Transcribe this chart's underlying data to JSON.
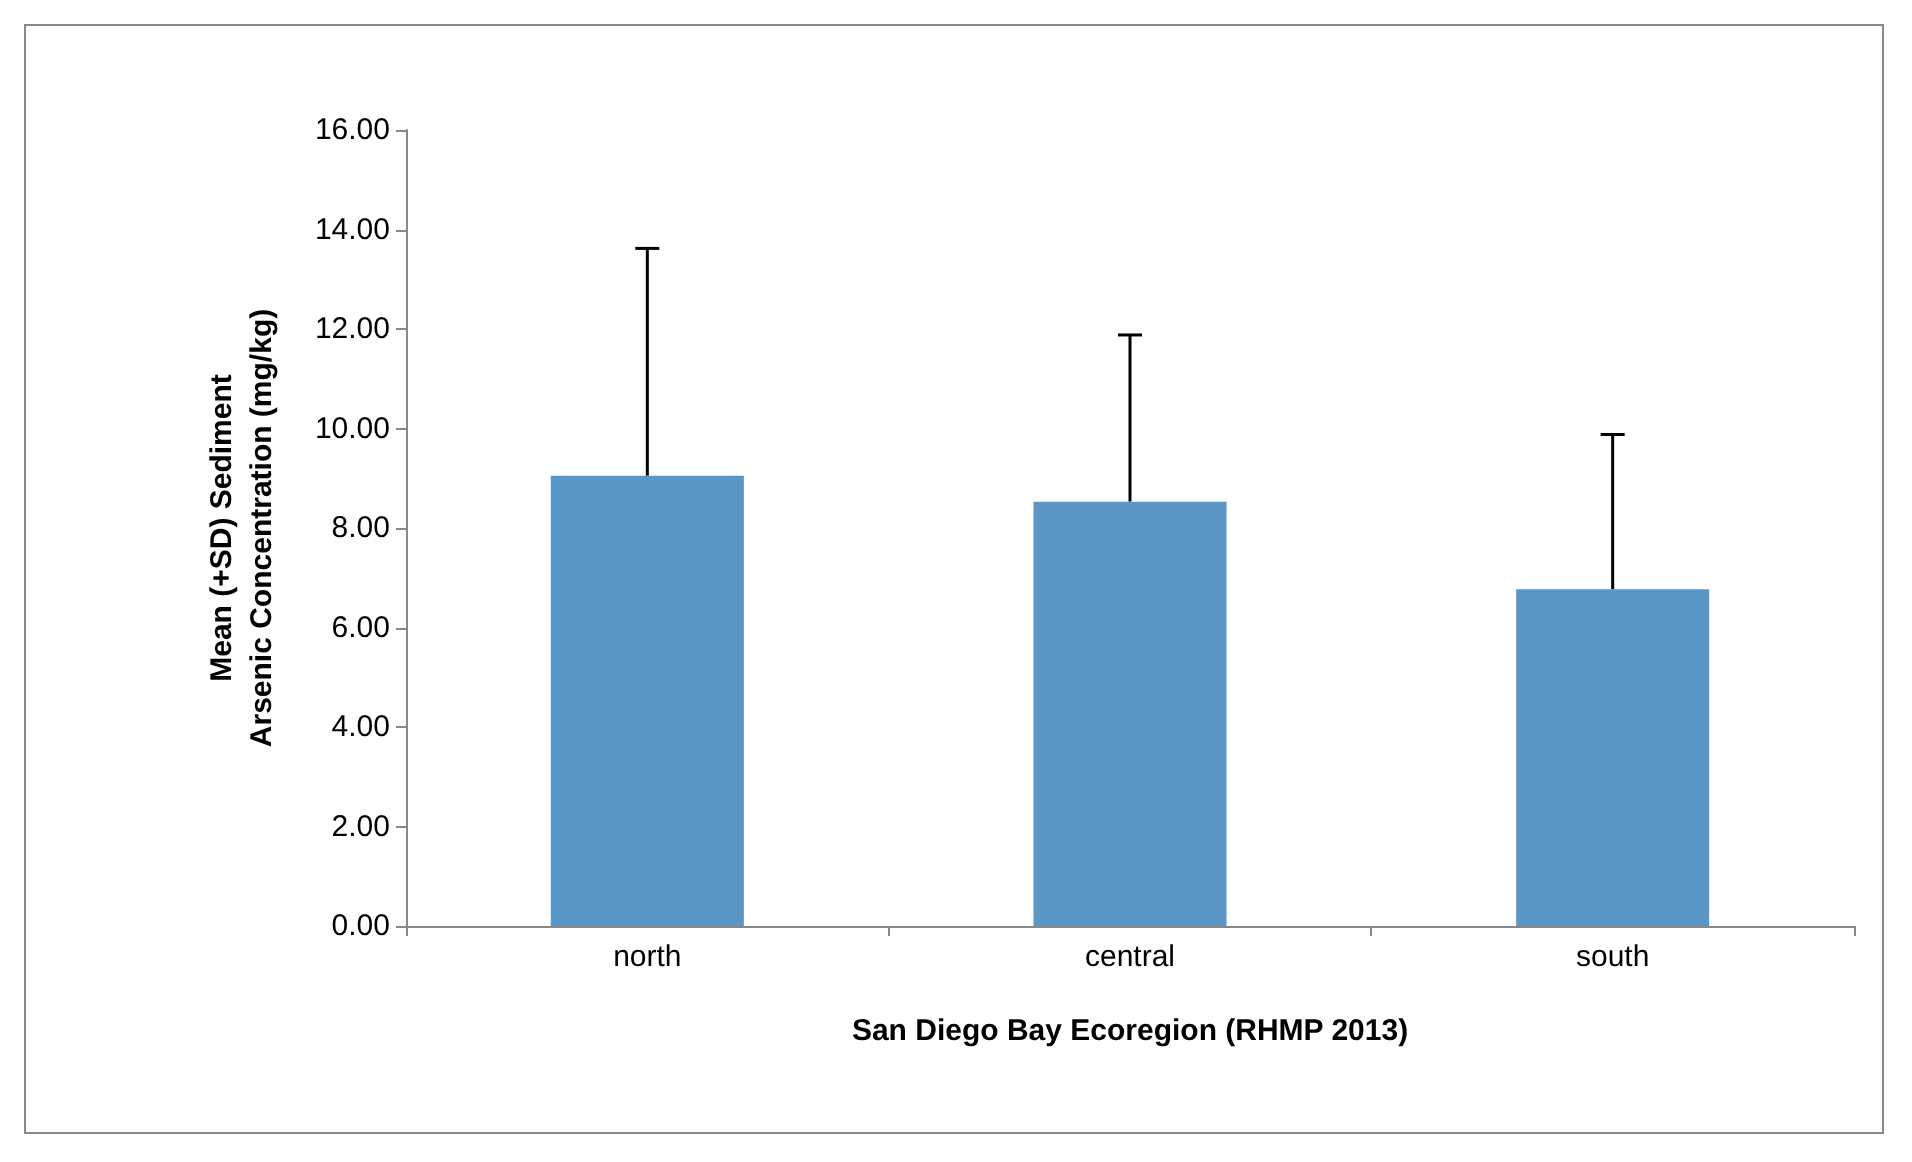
{
  "chart_data": {
    "type": "bar",
    "xlabel": "San Diego Bay Ecoregion (RHMP 2013)",
    "ylabel": "Mean (+SD) Sediment Arsenic Concentration (mg/kg)",
    "categories": [
      "north",
      "central",
      "south"
    ],
    "values": [
      9.05,
      8.53,
      6.77
    ],
    "errors": [
      [
        9.05,
        13.62
      ],
      [
        8.53,
        11.88
      ],
      [
        6.77,
        9.88
      ]
    ],
    "color": "#5a96c6",
    "ylim": [
      0,
      16
    ],
    "yticks": [
      {
        "value": 0,
        "label": "0.00"
      },
      {
        "value": 2,
        "label": "2.00"
      },
      {
        "value": 4,
        "label": "4.00"
      },
      {
        "value": 6,
        "label": "6.00"
      },
      {
        "value": 8,
        "label": "8.00"
      },
      {
        "value": 10,
        "label": "10.00"
      },
      {
        "value": 12,
        "label": "12.00"
      },
      {
        "value": 14,
        "label": "14.00"
      },
      {
        "value": 16,
        "label": "16.00"
      }
    ],
    "grid": false
  }
}
